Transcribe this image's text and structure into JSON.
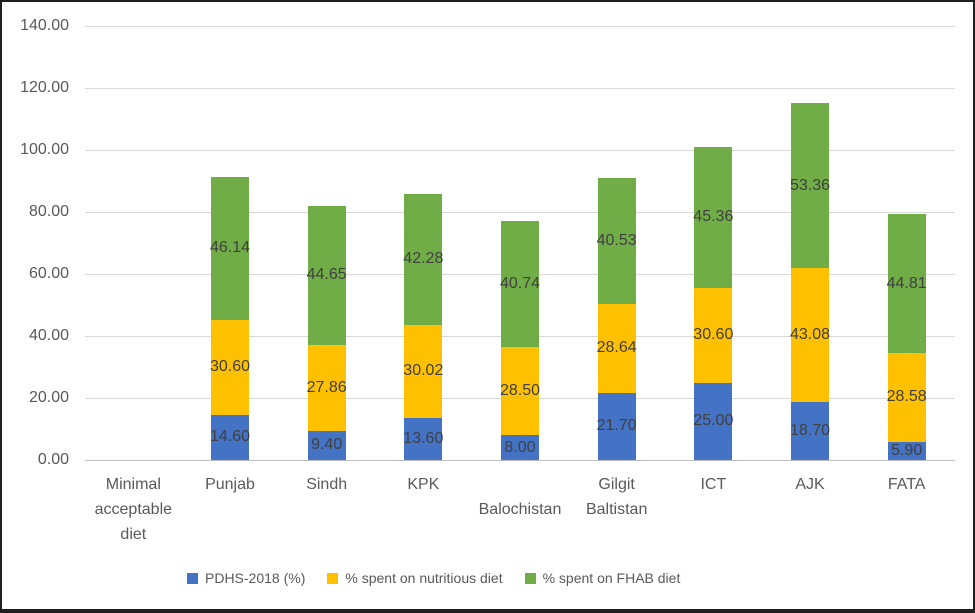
{
  "chart_data": {
    "type": "bar",
    "stacked": true,
    "title": "",
    "xlabel": "",
    "ylabel": "",
    "categories": [
      "Minimal acceptable diet",
      "Punjab",
      "Sindh",
      "KPK",
      "Balochistan",
      "Gilgit Baltistan",
      "ICT",
      "AJK",
      "FATA"
    ],
    "x_label_rows": [
      0,
      0,
      0,
      0,
      1,
      0,
      0,
      0,
      0
    ],
    "series": [
      {
        "name": "PDHS-2018 (%)",
        "color": "#4472C4",
        "values": [
          null,
          14.6,
          9.4,
          13.6,
          8.0,
          21.7,
          25.0,
          18.7,
          5.9
        ]
      },
      {
        "name": "% spent on nutritious diet",
        "color": "#FFC000",
        "values": [
          null,
          30.6,
          27.86,
          30.02,
          28.5,
          28.64,
          30.6,
          43.08,
          28.58
        ]
      },
      {
        "name": "% spent on FHAB diet",
        "color": "#70AD47",
        "values": [
          null,
          46.14,
          44.65,
          42.28,
          40.74,
          40.53,
          45.36,
          53.36,
          44.81
        ]
      }
    ],
    "ylim": [
      0,
      140
    ],
    "ytick_step": 20,
    "value_decimals": 2,
    "grid": true,
    "legend_position": "bottom"
  },
  "style": {
    "gridline_color": "#d9d9d9",
    "axis_line_color": "#bfbfbf",
    "tick_text_color": "#595959",
    "value_label_color": "#404040",
    "frame_border_color": "#1f1f1f",
    "background": "#ffffff"
  }
}
